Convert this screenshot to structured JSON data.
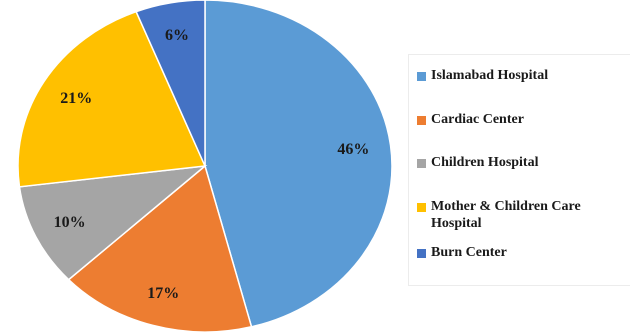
{
  "chart_data": {
    "type": "pie",
    "title": "",
    "slices": [
      {
        "label": "Islamabad Hospital",
        "value": 46,
        "display": "46%",
        "color": "#5B9BD5"
      },
      {
        "label": "Cardiac Center",
        "value": 17,
        "display": "17%",
        "color": "#ED7D31"
      },
      {
        "label": "Children Hospital",
        "value": 10,
        "display": "10%",
        "color": "#A5A5A5"
      },
      {
        "label": "Mother & Children Care\nHospital",
        "value": 21,
        "display": "21%",
        "color": "#FFC000"
      },
      {
        "label": "Burn Center",
        "value": 6,
        "display": "6%",
        "color": "#4472C4"
      }
    ],
    "start_angle": "12 o'clock",
    "direction": "clockwise",
    "legend_position": "right"
  }
}
